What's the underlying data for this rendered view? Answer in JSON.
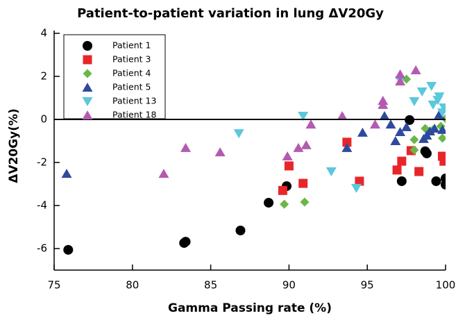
{
  "chart_data": {
    "type": "scatter",
    "title": "Patient-to-patient variation in lung ΔV20Gy",
    "x_label": "Gamma Passing rate (%)",
    "y_label": "ΔV20Gy(%)",
    "xlim": [
      75,
      100
    ],
    "xticks": [
      75,
      80,
      85,
      90,
      95,
      100
    ],
    "ylim": [
      -7,
      4
    ],
    "yticks": [
      -6,
      -4,
      -2,
      0,
      2,
      4
    ],
    "reference_line": 0,
    "legend": "upper left",
    "series": [
      {
        "name": "Patient 1",
        "color": "#000000",
        "marker": "circle",
        "x": [
          75.9,
          83.3,
          83.4,
          86.9,
          88.7,
          89.85,
          97.2,
          97.7,
          98.7,
          98.8,
          99.4,
          100,
          100
        ],
        "values": [
          -6.06,
          -5.74,
          -5.68,
          -5.16,
          -3.87,
          -3.1,
          -2.87,
          -0.03,
          -1.48,
          -1.58,
          -2.87,
          -2.74,
          -3.03
        ]
      },
      {
        "name": "Patient 3",
        "color": "#e8262a",
        "marker": "square",
        "x": [
          89.6,
          90.0,
          90.9,
          93.7,
          94.5,
          96.9,
          97.2,
          97.8,
          98.3,
          99.8,
          99.9
        ],
        "values": [
          -3.3,
          -2.16,
          -2.97,
          -1.06,
          -2.87,
          -2.35,
          -1.94,
          -1.45,
          -2.42,
          -1.71,
          -1.94
        ]
      },
      {
        "name": "Patient 4",
        "color": "#6ab648",
        "marker": "diamond",
        "x": [
          89.7,
          91.0,
          97.5,
          98.0,
          98.0,
          98.7,
          99.2,
          99.7,
          99.8,
          100
        ],
        "values": [
          -3.94,
          -3.84,
          1.87,
          -0.94,
          -1.42,
          -0.42,
          -0.48,
          -0.32,
          -0.87,
          0.03
        ]
      },
      {
        "name": "Patient 5",
        "color": "#2e4a9e",
        "marker": "triangle-up",
        "x": [
          75.8,
          93.7,
          94.7,
          96.1,
          96.5,
          96.8,
          97.1,
          97.5,
          98.6,
          98.8,
          99.0,
          99.3,
          99.6,
          99.8
        ],
        "values": [
          -2.52,
          -1.32,
          -0.61,
          0.16,
          -0.23,
          -1.0,
          -0.58,
          -0.35,
          -0.9,
          -0.74,
          -0.55,
          -0.42,
          0.23,
          -0.48
        ]
      },
      {
        "name": "Patient 13",
        "color": "#5bc8dc",
        "marker": "triangle-down",
        "x": [
          86.8,
          90.9,
          92.7,
          94.3,
          97.1,
          98.0,
          98.5,
          99.1,
          99.2,
          99.5,
          99.6,
          99.8,
          99.9
        ],
        "values": [
          -0.65,
          0.16,
          -2.42,
          -3.19,
          1.81,
          0.84,
          1.29,
          1.55,
          0.68,
          0.9,
          1.06,
          0.32,
          0.55
        ]
      },
      {
        "name": "Patient 18",
        "color": "#b25bb0",
        "marker": "triangle-up",
        "x": [
          82.0,
          83.4,
          85.6,
          89.9,
          90.6,
          91.1,
          91.4,
          93.4,
          95.5,
          96.0,
          96.0,
          97.1,
          97.1,
          98.1
        ],
        "values": [
          -2.52,
          -1.32,
          -1.52,
          -1.71,
          -1.32,
          -1.19,
          -0.23,
          0.16,
          -0.23,
          0.87,
          0.68,
          2.1,
          1.77,
          2.29
        ]
      }
    ]
  }
}
